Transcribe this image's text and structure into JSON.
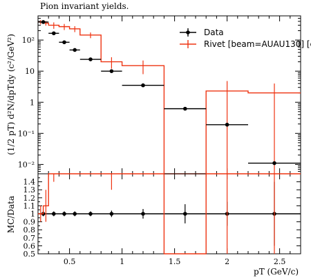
{
  "title": "Pion invariant yields.",
  "ylabel_main": "(1/2 pT) d²N/dpTdy (c²/GeV²)",
  "ylabel_ratio": "MC/Data",
  "xlabel": "pT (GeV/c)",
  "legend": [
    {
      "label": "Data",
      "color": "#000000"
    },
    {
      "label": "Rivet [beam=AUAU130] [c",
      "color": "#ee3311"
    }
  ],
  "chart_data": {
    "type": "line",
    "x_range": [
      0.2,
      2.7
    ],
    "x_ticks": [
      0.5,
      1,
      1.5,
      2,
      2.5
    ],
    "x_tick_labels": [
      "0.5",
      "1",
      "1.5",
      "2",
      "2.5"
    ],
    "main": {
      "y_scale": "log",
      "y_range": [
        0.005,
        600
      ],
      "y_ticks": [
        0.01,
        0.1,
        1,
        10,
        100
      ],
      "y_tick_labels": [
        "10⁻²",
        "10⁻¹",
        "1",
        "10",
        "10²"
      ],
      "data_series": {
        "name": "Data",
        "x": [
          0.25,
          0.35,
          0.45,
          0.55,
          0.7,
          0.9,
          1.2,
          1.6,
          2.0,
          2.45
        ],
        "x_low": [
          0.2,
          0.3,
          0.4,
          0.5,
          0.6,
          0.8,
          1.0,
          1.4,
          1.8,
          2.2
        ],
        "x_high": [
          0.3,
          0.4,
          0.5,
          0.6,
          0.8,
          1.0,
          1.4,
          1.8,
          2.2,
          2.7
        ],
        "y": [
          380,
          165,
          85,
          48,
          24,
          10,
          3.5,
          0.62,
          0.19,
          0.011
        ]
      },
      "mc_series": {
        "name": "Rivet [beam=AUAU130] [c",
        "edges": [
          0.2,
          0.25,
          0.3,
          0.4,
          0.5,
          0.6,
          0.8,
          1.0,
          1.4,
          1.8,
          2.2,
          2.7
        ],
        "values": [
          380,
          350,
          300,
          270,
          230,
          145,
          20,
          15,
          0.0001,
          2.3,
          2.0
        ],
        "errors": [
          60,
          60,
          70,
          60,
          50,
          30,
          8,
          7,
          0,
          2.5,
          2.0
        ]
      }
    },
    "ratio": {
      "y_range": [
        0.5,
        1.5
      ],
      "y_ticks": [
        0.5,
        0.6,
        0.7,
        0.8,
        0.9,
        1.0,
        1.1,
        1.2,
        1.3,
        1.4
      ],
      "y_tick_labels": [
        "0.5",
        "0.6",
        "0.7",
        "0.8",
        "0.9",
        "1",
        "1.1",
        "1.2",
        "1.3",
        "1.4"
      ],
      "data_band_errors": [
        0.03,
        0.03,
        0.03,
        0.03,
        0.03,
        0.04,
        0.06,
        0.12,
        0.15,
        0.4
      ],
      "mc_ratio_edges": [
        0.2,
        0.25,
        0.3,
        0.4,
        0.5,
        0.6,
        0.8,
        1.0,
        1.4,
        1.8,
        2.2,
        2.7
      ],
      "mc_ratio_values": [
        1.0,
        1.1,
        1.8,
        3.2,
        4.8,
        6.0,
        2.0,
        4.3,
        0.0,
        12.0,
        180.0
      ],
      "mc_ratio_errors": [
        0.1,
        0.2,
        0.4,
        0.6,
        0.8,
        1.0,
        0.7,
        2.0,
        0.0,
        12.0,
        180.0
      ]
    }
  }
}
